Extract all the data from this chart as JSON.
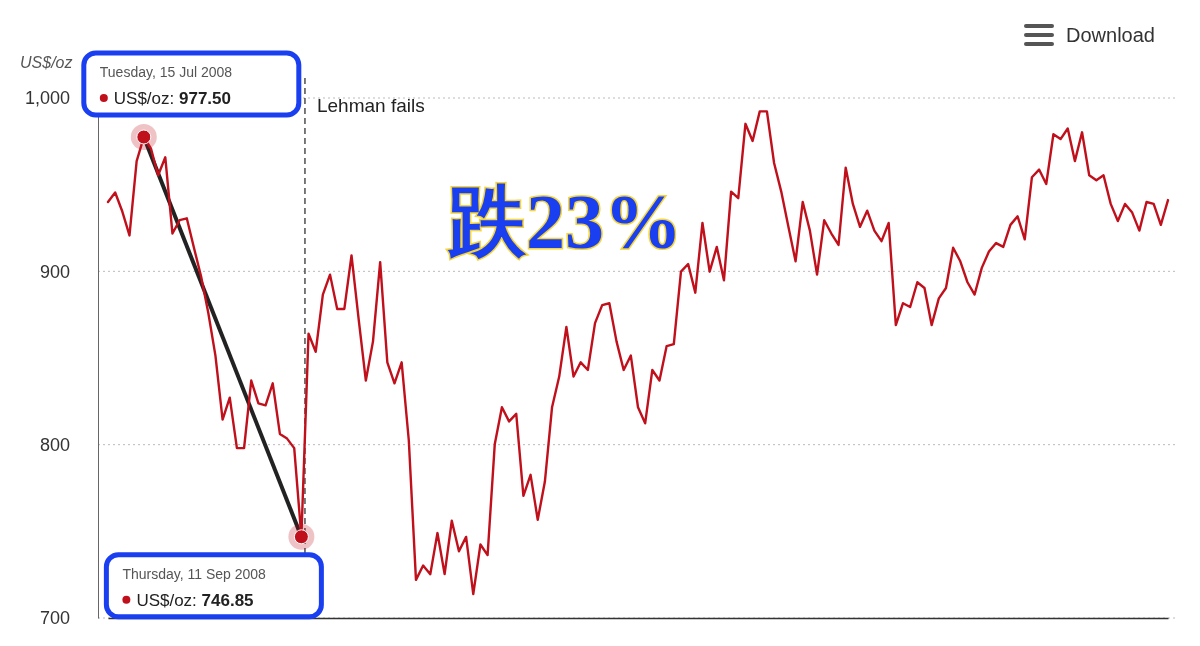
{
  "chart_data": {
    "type": "line",
    "ylabel": "US$/oz",
    "categories": [
      null,
      null,
      null,
      null,
      null,
      null,
      null,
      null,
      null,
      null,
      null,
      null,
      null,
      null,
      null,
      null,
      null,
      null,
      null,
      null,
      null,
      null,
      null,
      null,
      null,
      null,
      null,
      null,
      null,
      null,
      null,
      null,
      null,
      null,
      null,
      null,
      null,
      null,
      null,
      null,
      null,
      null,
      null,
      null,
      null,
      null,
      null,
      null,
      null,
      null,
      null,
      null,
      null,
      null,
      null,
      null,
      null,
      null,
      null,
      null,
      null,
      null,
      null,
      null,
      null,
      null,
      null,
      null,
      null,
      null,
      null,
      null,
      null,
      null,
      null,
      null,
      null,
      null,
      null,
      null,
      null,
      null,
      null,
      null,
      null,
      null,
      null,
      null,
      null,
      null,
      null,
      null,
      null,
      null,
      null,
      null,
      null,
      null,
      null,
      null,
      null,
      null,
      null,
      null,
      null,
      null,
      null,
      null,
      null,
      null,
      null,
      null,
      null,
      null,
      null,
      null,
      null,
      null,
      null,
      null,
      null,
      null,
      null,
      null,
      null,
      null,
      null,
      null,
      null,
      null,
      null,
      null,
      null,
      null,
      null,
      null,
      null,
      null,
      null,
      null,
      null,
      null,
      null,
      null,
      null,
      null,
      null,
      null,
      null
    ],
    "series": [
      {
        "color": "#c0101c",
        "values": [
          940.0,
          945.5,
          934.5,
          920.7,
          963.6,
          977.5,
          970.8,
          955.4,
          965.8,
          921.8,
          929.5,
          930.6,
          913.6,
          897.0,
          876.1,
          851.4,
          814.5,
          827.1,
          798.0,
          798.0,
          837.0,
          823.8,
          822.7,
          835.4,
          806.2,
          803.5,
          798.0,
          746.85,
          864.0,
          853.6,
          886.6,
          898.1,
          878.3,
          878.3,
          909.2,
          872.3,
          837.0,
          859.6,
          905.3,
          847.5,
          835.4,
          847.5,
          802.4,
          722.0,
          730.3,
          725.3,
          749.0,
          725.3,
          756.1,
          738.5,
          746.8,
          713.8,
          742.4,
          736.3,
          800.2,
          821.6,
          813.4,
          817.8,
          770.5,
          782.6,
          756.7,
          778.7,
          821.6,
          839.3,
          867.9,
          839.3,
          847.5,
          843.1,
          870.1,
          880.5,
          881.6,
          859.6,
          843.1,
          851.4,
          821.6,
          812.3,
          843.1,
          837.0,
          856.9,
          858.0,
          899.8,
          904.2,
          887.7,
          927.9,
          899.8,
          914.1,
          894.8,
          946.0,
          942.2,
          985.1,
          975.2,
          992.3,
          992.3,
          962.5,
          946.0,
          925.7,
          905.8,
          940.0,
          923.5,
          898.1,
          929.5,
          921.8,
          915.2,
          959.8,
          938.9,
          925.7,
          935.0,
          923.5,
          917.4,
          927.9,
          869.0,
          881.6,
          879.4,
          893.7,
          890.4,
          869.0,
          884.4,
          890.4,
          913.6,
          905.8,
          893.7,
          886.6,
          902.0,
          911.4,
          916.3,
          914.1,
          926.8,
          931.7,
          918.5,
          954.3,
          958.7,
          950.4,
          979.1,
          976.3,
          982.4,
          963.6,
          980.2,
          955.4,
          952.6,
          955.4,
          938.9,
          929.0,
          938.9,
          933.9,
          923.5,
          940.0,
          938.9,
          926.8,
          941.1
        ]
      }
    ],
    "ylim": [
      700,
      1000
    ],
    "yticks": [
      700,
      800,
      900,
      {
        "value": 1000,
        "label": "1,000"
      }
    ],
    "tick_labels": "y",
    "grid": "y",
    "line_style": "solid",
    "annotations": [
      "Tuesday, 15 Jul 2008\nUS$/oz: 977.50",
      "Thursday, 11 Sep 2008\nUS$/oz: 746.85",
      "Lehman fails",
      "跌23%",
      "Download"
    ]
  }
}
